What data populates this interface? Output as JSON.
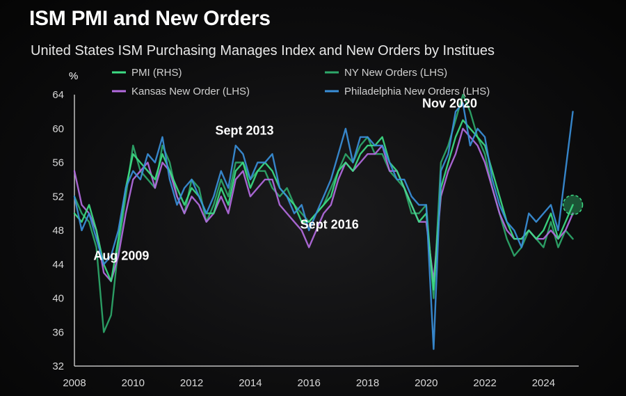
{
  "title": "ISM PMI and New Orders",
  "subtitle": "United States ISM Purchasing Manages Index and New Orders by Institues",
  "chart_data": {
    "type": "line",
    "y_unit_label": "%",
    "xlim": [
      2008,
      2025.2
    ],
    "ylim": [
      32,
      64
    ],
    "x_ticks": [
      2008,
      2010,
      2012,
      2014,
      2016,
      2018,
      2020,
      2022,
      2024
    ],
    "y_ticks": [
      32,
      36,
      40,
      44,
      48,
      52,
      56,
      60,
      64
    ],
    "grid": false,
    "legend_position": "top",
    "series": [
      {
        "name": "PMI (RHS)",
        "color": "#3ddc84",
        "x": [
          2008.0,
          2008.25,
          2008.5,
          2008.75,
          2009.0,
          2009.25,
          2009.5,
          2009.75,
          2010.0,
          2010.25,
          2010.5,
          2010.75,
          2011.0,
          2011.25,
          2011.5,
          2011.75,
          2012.0,
          2012.25,
          2012.5,
          2012.75,
          2013.0,
          2013.25,
          2013.5,
          2013.75,
          2014.0,
          2014.25,
          2014.5,
          2014.75,
          2015.0,
          2015.25,
          2015.5,
          2015.75,
          2016.0,
          2016.25,
          2016.5,
          2016.75,
          2017.0,
          2017.25,
          2017.5,
          2017.75,
          2018.0,
          2018.25,
          2018.5,
          2018.75,
          2019.0,
          2019.25,
          2019.5,
          2019.75,
          2020.0,
          2020.25,
          2020.5,
          2020.75,
          2021.0,
          2021.25,
          2021.5,
          2021.75,
          2022.0,
          2022.25,
          2022.5,
          2022.75,
          2023.0,
          2023.25,
          2023.5,
          2023.75,
          2024.0,
          2024.25,
          2024.5,
          2024.75,
          2025.0
        ],
        "y": [
          50,
          49,
          51,
          48,
          44,
          42,
          47,
          53,
          57,
          56,
          55,
          54,
          57,
          55,
          53,
          51,
          53,
          52,
          50,
          50,
          53,
          51,
          55,
          56,
          53,
          55,
          56,
          55,
          53,
          52,
          51,
          49,
          49,
          50,
          51,
          52,
          55,
          56,
          55,
          57,
          58,
          58,
          59,
          56,
          55,
          53,
          51,
          49,
          50,
          41,
          53,
          56,
          59,
          61,
          60,
          59,
          58,
          55,
          52,
          49,
          47,
          47,
          48,
          47,
          48,
          50,
          47,
          49,
          51
        ]
      },
      {
        "name": "NY New Orders (LHS)",
        "color": "#2ea86a",
        "x": [
          2008.0,
          2008.25,
          2008.5,
          2008.75,
          2009.0,
          2009.25,
          2009.5,
          2009.75,
          2010.0,
          2010.25,
          2010.5,
          2010.75,
          2011.0,
          2011.25,
          2011.5,
          2011.75,
          2012.0,
          2012.25,
          2012.5,
          2012.75,
          2013.0,
          2013.25,
          2013.5,
          2013.75,
          2014.0,
          2014.25,
          2014.5,
          2014.75,
          2015.0,
          2015.25,
          2015.5,
          2015.75,
          2016.0,
          2016.25,
          2016.5,
          2016.75,
          2017.0,
          2017.25,
          2017.5,
          2017.75,
          2018.0,
          2018.25,
          2018.5,
          2018.75,
          2019.0,
          2019.25,
          2019.5,
          2019.75,
          2020.0,
          2020.25,
          2020.5,
          2020.75,
          2021.0,
          2021.25,
          2021.5,
          2021.75,
          2022.0,
          2022.25,
          2022.5,
          2022.75,
          2023.0,
          2023.25,
          2023.5,
          2023.75,
          2024.0,
          2024.25,
          2024.5,
          2024.75,
          2025.0
        ],
        "y": [
          52,
          50,
          49,
          46,
          36,
          38,
          46,
          52,
          58,
          55,
          54,
          53,
          58,
          56,
          52,
          50,
          54,
          53,
          49,
          51,
          54,
          52,
          56,
          56,
          54,
          55,
          55,
          53,
          52,
          53,
          51,
          50,
          49,
          50,
          51,
          53,
          55,
          57,
          56,
          58,
          59,
          57,
          57,
          55,
          54,
          53,
          50,
          50,
          51,
          40,
          56,
          58,
          61,
          64,
          62,
          59,
          57,
          53,
          50,
          47,
          45,
          46,
          48,
          47,
          46,
          49,
          46,
          48,
          47
        ]
      },
      {
        "name": "Kansas New Order (LHS)",
        "color": "#b36be0",
        "x": [
          2008.0,
          2008.25,
          2008.5,
          2008.75,
          2009.0,
          2009.25,
          2009.5,
          2009.75,
          2010.0,
          2010.25,
          2010.5,
          2010.75,
          2011.0,
          2011.25,
          2011.5,
          2011.75,
          2012.0,
          2012.25,
          2012.5,
          2012.75,
          2013.0,
          2013.25,
          2013.5,
          2013.75,
          2014.0,
          2014.25,
          2014.5,
          2014.75,
          2015.0,
          2015.25,
          2015.5,
          2015.75,
          2016.0,
          2016.25,
          2016.5,
          2016.75,
          2017.0,
          2017.25,
          2017.5,
          2017.75,
          2018.0,
          2018.25,
          2018.5,
          2018.75,
          2019.0,
          2019.25,
          2019.5,
          2019.75,
          2020.0,
          2020.25,
          2020.5,
          2020.75,
          2021.0,
          2021.25,
          2021.5,
          2021.75,
          2022.0,
          2022.25,
          2022.5,
          2022.75,
          2023.0,
          2023.25,
          2023.5,
          2023.75,
          2024.0,
          2024.25,
          2024.5,
          2024.75,
          2025.0
        ],
        "y": [
          55,
          51,
          50,
          48,
          43,
          42,
          45,
          50,
          54,
          55,
          56,
          53,
          56,
          55,
          52,
          50,
          52,
          51,
          49,
          50,
          52,
          50,
          54,
          55,
          52,
          53,
          54,
          54,
          51,
          50,
          49,
          48,
          46,
          48,
          50,
          51,
          54,
          56,
          55,
          56,
          57,
          57,
          58,
          55,
          55,
          53,
          51,
          49,
          49,
          42,
          52,
          55,
          57,
          60,
          59,
          58,
          56,
          53,
          50,
          48,
          47,
          47,
          48,
          47,
          47,
          48,
          47,
          48,
          50
        ]
      },
      {
        "name": "Philadelphia New Orders (LHS)",
        "color": "#3a8fd9",
        "x": [
          2008.0,
          2008.25,
          2008.5,
          2008.75,
          2009.0,
          2009.25,
          2009.5,
          2009.75,
          2010.0,
          2010.25,
          2010.5,
          2010.75,
          2011.0,
          2011.25,
          2011.5,
          2011.75,
          2012.0,
          2012.25,
          2012.5,
          2012.75,
          2013.0,
          2013.25,
          2013.5,
          2013.75,
          2014.0,
          2014.25,
          2014.5,
          2014.75,
          2015.0,
          2015.25,
          2015.5,
          2015.75,
          2016.0,
          2016.25,
          2016.5,
          2016.75,
          2017.0,
          2017.25,
          2017.5,
          2017.75,
          2018.0,
          2018.25,
          2018.5,
          2018.75,
          2019.0,
          2019.25,
          2019.5,
          2019.75,
          2020.0,
          2020.25,
          2020.5,
          2020.75,
          2021.0,
          2021.25,
          2021.5,
          2021.75,
          2022.0,
          2022.25,
          2022.5,
          2022.75,
          2023.0,
          2023.25,
          2023.5,
          2023.75,
          2024.0,
          2024.25,
          2024.5,
          2024.75,
          2025.0
        ],
        "y": [
          52,
          48,
          50,
          47,
          44,
          45,
          48,
          53,
          55,
          54,
          57,
          56,
          59,
          54,
          51,
          53,
          54,
          52,
          50,
          52,
          55,
          53,
          58,
          57,
          54,
          56,
          56,
          57,
          53,
          52,
          50,
          51,
          48,
          50,
          52,
          54,
          57,
          60,
          56,
          59,
          59,
          58,
          58,
          56,
          54,
          54,
          52,
          51,
          51,
          34,
          55,
          57,
          62,
          63,
          58,
          60,
          59,
          54,
          51,
          49,
          48,
          46,
          50,
          49,
          50,
          51,
          48,
          55,
          62
        ]
      }
    ],
    "annotations": [
      {
        "text": "Aug 2009",
        "x": 2009.6,
        "y": 44.5
      },
      {
        "text": "Sept 2013",
        "x": 2013.8,
        "y": 59.3
      },
      {
        "text": "Sept 2016",
        "x": 2016.7,
        "y": 48.2
      },
      {
        "text": "Nov 2020",
        "x": 2020.8,
        "y": 62.5
      }
    ]
  }
}
